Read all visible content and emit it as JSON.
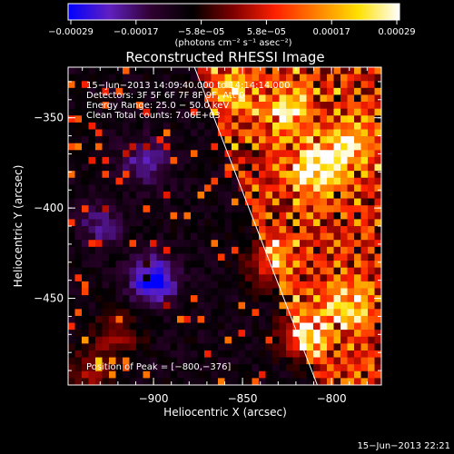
{
  "chart_data": {
    "type": "heatmap",
    "title": "Reconstructed RHESSI Image",
    "xlabel": "Heliocentric X (arcsec)",
    "ylabel": "Heliocentric Y (arcsec)",
    "xlim": [
      -948,
      -772
    ],
    "ylim": [
      -498,
      -322
    ],
    "x_ticks": [
      -900,
      -850,
      -800
    ],
    "y_ticks": [
      -350,
      -400,
      -450
    ],
    "x_tick_labels": [
      "−900",
      "−850",
      "−800"
    ],
    "y_tick_labels": [
      "−350",
      "−400",
      "−450"
    ],
    "colorbar": {
      "range": [
        -0.00029,
        0.00029
      ],
      "tick_labels": [
        "−0.00029",
        "−0.00017",
        "−5.8e−05",
        "5.8e−05",
        "0.00017",
        "0.00029"
      ],
      "unit_label": "(photons cm⁻² s⁻¹ asec⁻²)",
      "stops": [
        "#0000ff",
        "#6020c0",
        "#300030",
        "#000000",
        "#800000",
        "#ff2000",
        "#ff8000",
        "#ffe000",
        "#ffffff"
      ]
    },
    "annotations": [
      "15−Jun−2013 14:09:40.000 to 14:14:14.000",
      "Detectors: 3F 5F 6F 7F 8F 9F, Att 0",
      "Energy Range: 25.0 − 50.0 keV",
      "Clean      Total counts: 7.06E+03"
    ],
    "peak_label": "Position of Peak = [−800,−376]",
    "peak_position": [
      -800,
      -376
    ],
    "limb_line": [
      [
        -877,
        -322
      ],
      [
        -808,
        -498
      ]
    ],
    "hot_spots": [
      {
        "x": -810,
        "y": -378,
        "level": 1.0
      },
      {
        "x": -825,
        "y": -345,
        "level": 0.8
      },
      {
        "x": -790,
        "y": -365,
        "level": 0.75
      },
      {
        "x": -835,
        "y": -430,
        "level": 0.6
      },
      {
        "x": -815,
        "y": -470,
        "level": 0.85
      },
      {
        "x": -790,
        "y": -455,
        "level": 0.7
      },
      {
        "x": -855,
        "y": -335,
        "level": 0.55
      },
      {
        "x": -920,
        "y": -470,
        "level": 0.35
      },
      {
        "x": -935,
        "y": -490,
        "level": 0.4
      }
    ],
    "cold_spots": [
      {
        "x": -900,
        "y": -440,
        "level": -0.8
      },
      {
        "x": -905,
        "y": -375,
        "level": -0.45
      },
      {
        "x": -930,
        "y": -410,
        "level": -0.35
      }
    ]
  },
  "footer": {
    "timestamp": "15−Jun−2013 22:21"
  }
}
